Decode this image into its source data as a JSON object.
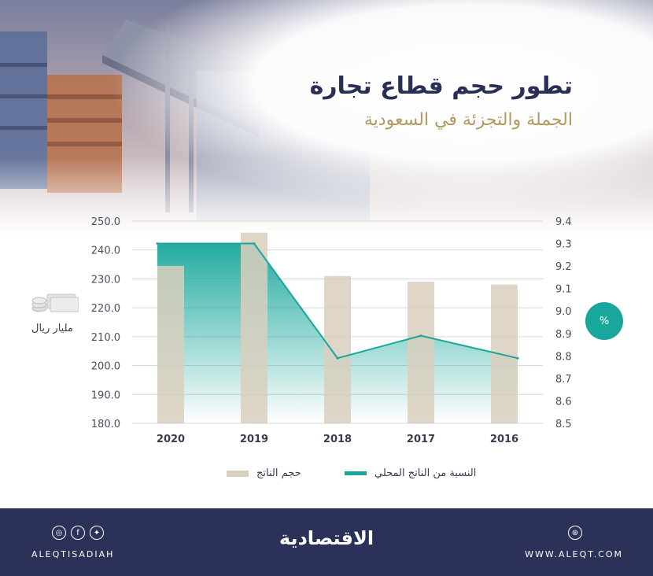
{
  "title": "تطور حجم قطاع تجارة",
  "subtitle": "الجملة والتجزئة في السعودية",
  "left_axis_unit": "مليار ريال",
  "right_axis_unit": "%",
  "legend": {
    "bars": "حجم الناتج",
    "line": "النسبة من الناتج المحلي"
  },
  "footer": {
    "brand": "الاقتصادية",
    "handle": "ALEQTISADIAH",
    "website": "WWW.ALEQT.COM",
    "social_icons": [
      "instagram-icon",
      "facebook-icon",
      "twitter-icon"
    ],
    "site_icon": "dribbble-icon"
  },
  "colors": {
    "bar": "#d9cfbd",
    "line": "#1aa79b",
    "footer_bg": "#2b3158",
    "title": "#2a2f55",
    "subtitle": "#b3995f"
  },
  "chart_data": {
    "type": "bar",
    "categories": [
      "2020",
      "2019",
      "2018",
      "2017",
      "2016"
    ],
    "series": [
      {
        "name": "حجم الناتج",
        "type": "bar",
        "axis": "left",
        "values": [
          234.5,
          246,
          231,
          229,
          228
        ]
      },
      {
        "name": "النسبة من الناتج المحلي",
        "type": "area-line",
        "axis": "right",
        "values": [
          9.3,
          9.3,
          8.79,
          8.89,
          8.79
        ]
      }
    ],
    "left_axis": {
      "ylim": [
        180,
        250
      ],
      "ticks": [
        "250.0",
        "240.0",
        "230.0",
        "220.0",
        "210.0",
        "200.0",
        "190.0",
        "180.0"
      ]
    },
    "right_axis": {
      "ylim": [
        8.5,
        9.4
      ],
      "ticks": [
        "9.4",
        "9.3",
        "9.2",
        "9.1",
        "9.0",
        "8.9",
        "8.8",
        "8.7",
        "8.6",
        "8.5"
      ]
    },
    "grid": true
  }
}
